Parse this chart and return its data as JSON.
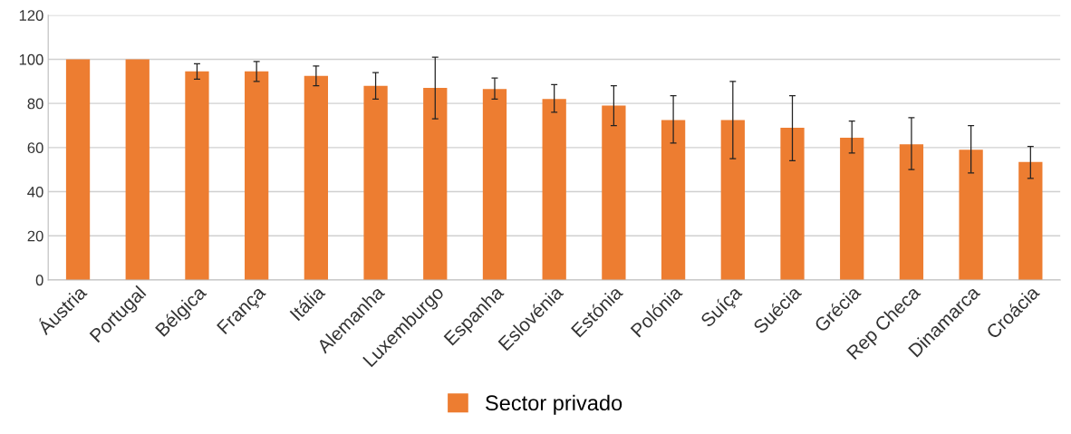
{
  "chart_data": {
    "type": "bar",
    "categories": [
      "Áustria",
      "Portugal",
      "Bélgica",
      "França",
      "Itália",
      "Alemanha",
      "Luxemburgo",
      "Espanha",
      "Eslovénia",
      "Estónia",
      "Polónia",
      "Suíça",
      "Suécia",
      "Grécia",
      "Rep Checa",
      "Dinamarca",
      "Croácia"
    ],
    "series": [
      {
        "name": "Sector privado",
        "color": "#ed7d31",
        "values": [
          100,
          100,
          94.5,
          94.5,
          92.5,
          88,
          87,
          86.5,
          82,
          79,
          72.5,
          72.5,
          69,
          64.5,
          61.5,
          59,
          53.5
        ],
        "errors": [
          null,
          null,
          [
            91,
            98
          ],
          [
            90,
            99
          ],
          [
            88,
            97
          ],
          [
            82,
            94
          ],
          [
            73,
            101
          ],
          [
            82,
            91.5
          ],
          [
            76,
            88.5
          ],
          [
            70,
            88
          ],
          [
            62,
            83.5
          ],
          [
            55,
            90
          ],
          [
            54,
            83.5
          ],
          [
            57.5,
            72
          ],
          [
            50,
            73.5
          ],
          [
            48.5,
            70
          ],
          [
            46,
            60.5
          ]
        ]
      }
    ],
    "ylim": [
      0,
      120
    ],
    "yticks": [
      0,
      20,
      40,
      60,
      80,
      100,
      120
    ],
    "grid": "y",
    "legend": "bottom"
  }
}
